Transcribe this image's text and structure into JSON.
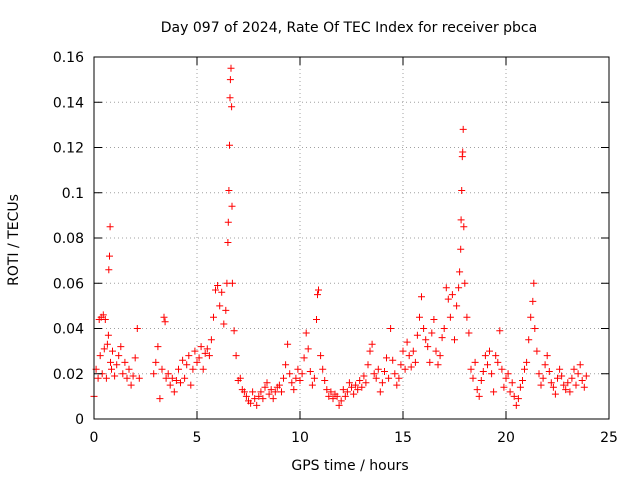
{
  "chart_data": {
    "type": "scatter",
    "title": "Day 097 of 2024, Rate Of TEC Index for receiver pbca",
    "xlabel": "GPS time / hours",
    "ylabel": "ROTI / TECUs",
    "xlim": [
      0,
      25
    ],
    "ylim": [
      0,
      0.16
    ],
    "xticks": [
      0,
      5,
      10,
      15,
      20,
      25
    ],
    "xtick_labels": [
      "0",
      "5",
      "10",
      "15",
      "20",
      "25"
    ],
    "yticks": [
      0,
      0.02,
      0.04,
      0.06,
      0.08,
      0.1,
      0.12,
      0.14,
      0.16
    ],
    "ytick_labels": [
      "0",
      "0.02",
      "0.04",
      "0.06",
      "0.08",
      "0.1",
      "0.12",
      "0.14",
      "0.16"
    ],
    "grid": true,
    "marker": "+",
    "color": "#ff0000",
    "series": [
      {
        "name": "ROTI",
        "points": [
          [
            0.0,
            0.01
          ],
          [
            0.1,
            0.022
          ],
          [
            0.2,
            0.018
          ],
          [
            0.25,
            0.044
          ],
          [
            0.3,
            0.028
          ],
          [
            0.35,
            0.045
          ],
          [
            0.4,
            0.02
          ],
          [
            0.45,
            0.046
          ],
          [
            0.5,
            0.031
          ],
          [
            0.55,
            0.044
          ],
          [
            0.6,
            0.018
          ],
          [
            0.65,
            0.033
          ],
          [
            0.7,
            0.037
          ],
          [
            0.72,
            0.066
          ],
          [
            0.75,
            0.072
          ],
          [
            0.78,
            0.085
          ],
          [
            0.8,
            0.025
          ],
          [
            0.85,
            0.022
          ],
          [
            0.9,
            0.03
          ],
          [
            1.0,
            0.019
          ],
          [
            1.1,
            0.024
          ],
          [
            1.2,
            0.028
          ],
          [
            1.3,
            0.032
          ],
          [
            1.4,
            0.02
          ],
          [
            1.5,
            0.025
          ],
          [
            1.6,
            0.018
          ],
          [
            1.7,
            0.022
          ],
          [
            1.8,
            0.015
          ],
          [
            1.9,
            0.019
          ],
          [
            2.0,
            0.027
          ],
          [
            2.1,
            0.04
          ],
          [
            2.2,
            0.018
          ],
          [
            2.9,
            0.02
          ],
          [
            3.0,
            0.025
          ],
          [
            3.1,
            0.032
          ],
          [
            3.2,
            0.009
          ],
          [
            3.3,
            0.022
          ],
          [
            3.4,
            0.045
          ],
          [
            3.45,
            0.043
          ],
          [
            3.5,
            0.018
          ],
          [
            3.6,
            0.02
          ],
          [
            3.7,
            0.015
          ],
          [
            3.8,
            0.018
          ],
          [
            3.9,
            0.012
          ],
          [
            4.0,
            0.017
          ],
          [
            4.1,
            0.022
          ],
          [
            4.2,
            0.016
          ],
          [
            4.3,
            0.026
          ],
          [
            4.4,
            0.018
          ],
          [
            4.5,
            0.024
          ],
          [
            4.6,
            0.028
          ],
          [
            4.7,
            0.015
          ],
          [
            4.8,
            0.022
          ],
          [
            4.9,
            0.03
          ],
          [
            5.0,
            0.025
          ],
          [
            5.1,
            0.027
          ],
          [
            5.2,
            0.032
          ],
          [
            5.3,
            0.022
          ],
          [
            5.4,
            0.029
          ],
          [
            5.5,
            0.031
          ],
          [
            5.6,
            0.028
          ],
          [
            5.7,
            0.035
          ],
          [
            5.8,
            0.045
          ],
          [
            5.9,
            0.057
          ],
          [
            6.0,
            0.059
          ],
          [
            6.1,
            0.05
          ],
          [
            6.2,
            0.056
          ],
          [
            6.3,
            0.042
          ],
          [
            6.4,
            0.048
          ],
          [
            6.45,
            0.06
          ],
          [
            6.5,
            0.078
          ],
          [
            6.52,
            0.087
          ],
          [
            6.55,
            0.101
          ],
          [
            6.58,
            0.121
          ],
          [
            6.6,
            0.142
          ],
          [
            6.62,
            0.15
          ],
          [
            6.65,
            0.155
          ],
          [
            6.68,
            0.138
          ],
          [
            6.7,
            0.094
          ],
          [
            6.72,
            0.06
          ],
          [
            6.8,
            0.039
          ],
          [
            6.9,
            0.028
          ],
          [
            7.0,
            0.017
          ],
          [
            7.1,
            0.018
          ],
          [
            7.2,
            0.013
          ],
          [
            7.3,
            0.012
          ],
          [
            7.4,
            0.01
          ],
          [
            7.5,
            0.008
          ],
          [
            7.6,
            0.007
          ],
          [
            7.7,
            0.012
          ],
          [
            7.8,
            0.009
          ],
          [
            7.9,
            0.006
          ],
          [
            8.0,
            0.01
          ],
          [
            8.1,
            0.012
          ],
          [
            8.2,
            0.009
          ],
          [
            8.3,
            0.014
          ],
          [
            8.4,
            0.016
          ],
          [
            8.5,
            0.011
          ],
          [
            8.6,
            0.013
          ],
          [
            8.7,
            0.009
          ],
          [
            8.8,
            0.012
          ],
          [
            8.9,
            0.014
          ],
          [
            9.0,
            0.015
          ],
          [
            9.1,
            0.012
          ],
          [
            9.2,
            0.018
          ],
          [
            9.3,
            0.024
          ],
          [
            9.4,
            0.033
          ],
          [
            9.5,
            0.02
          ],
          [
            9.6,
            0.016
          ],
          [
            9.7,
            0.013
          ],
          [
            9.8,
            0.018
          ],
          [
            9.9,
            0.022
          ],
          [
            10.0,
            0.017
          ],
          [
            10.1,
            0.02
          ],
          [
            10.2,
            0.027
          ],
          [
            10.3,
            0.038
          ],
          [
            10.4,
            0.031
          ],
          [
            10.5,
            0.021
          ],
          [
            10.6,
            0.015
          ],
          [
            10.7,
            0.018
          ],
          [
            10.8,
            0.044
          ],
          [
            10.85,
            0.055
          ],
          [
            10.9,
            0.057
          ],
          [
            11.0,
            0.028
          ],
          [
            11.1,
            0.022
          ],
          [
            11.2,
            0.017
          ],
          [
            11.3,
            0.013
          ],
          [
            11.4,
            0.01
          ],
          [
            11.5,
            0.012
          ],
          [
            11.6,
            0.009
          ],
          [
            11.7,
            0.011
          ],
          [
            11.8,
            0.01
          ],
          [
            11.9,
            0.006
          ],
          [
            12.0,
            0.008
          ],
          [
            12.1,
            0.013
          ],
          [
            12.2,
            0.01
          ],
          [
            12.3,
            0.012
          ],
          [
            12.4,
            0.016
          ],
          [
            12.5,
            0.014
          ],
          [
            12.6,
            0.011
          ],
          [
            12.7,
            0.015
          ],
          [
            12.8,
            0.013
          ],
          [
            12.9,
            0.017
          ],
          [
            13.0,
            0.014
          ],
          [
            13.1,
            0.019
          ],
          [
            13.2,
            0.016
          ],
          [
            13.3,
            0.024
          ],
          [
            13.4,
            0.03
          ],
          [
            13.5,
            0.033
          ],
          [
            13.6,
            0.02
          ],
          [
            13.7,
            0.018
          ],
          [
            13.8,
            0.022
          ],
          [
            13.9,
            0.012
          ],
          [
            14.0,
            0.016
          ],
          [
            14.1,
            0.021
          ],
          [
            14.2,
            0.027
          ],
          [
            14.3,
            0.018
          ],
          [
            14.4,
            0.04
          ],
          [
            14.5,
            0.026
          ],
          [
            14.6,
            0.02
          ],
          [
            14.7,
            0.015
          ],
          [
            14.8,
            0.018
          ],
          [
            14.9,
            0.024
          ],
          [
            15.0,
            0.03
          ],
          [
            15.1,
            0.022
          ],
          [
            15.2,
            0.034
          ],
          [
            15.3,
            0.028
          ],
          [
            15.4,
            0.023
          ],
          [
            15.5,
            0.03
          ],
          [
            15.6,
            0.025
          ],
          [
            15.7,
            0.037
          ],
          [
            15.8,
            0.045
          ],
          [
            15.9,
            0.054
          ],
          [
            16.0,
            0.04
          ],
          [
            16.1,
            0.035
          ],
          [
            16.2,
            0.032
          ],
          [
            16.3,
            0.025
          ],
          [
            16.4,
            0.038
          ],
          [
            16.5,
            0.044
          ],
          [
            16.6,
            0.03
          ],
          [
            16.7,
            0.024
          ],
          [
            16.8,
            0.028
          ],
          [
            16.9,
            0.036
          ],
          [
            17.0,
            0.04
          ],
          [
            17.1,
            0.058
          ],
          [
            17.2,
            0.053
          ],
          [
            17.3,
            0.045
          ],
          [
            17.4,
            0.055
          ],
          [
            17.5,
            0.035
          ],
          [
            17.6,
            0.05
          ],
          [
            17.7,
            0.058
          ],
          [
            17.75,
            0.065
          ],
          [
            17.8,
            0.075
          ],
          [
            17.82,
            0.088
          ],
          [
            17.85,
            0.101
          ],
          [
            17.88,
            0.116
          ],
          [
            17.9,
            0.118
          ],
          [
            17.92,
            0.128
          ],
          [
            17.95,
            0.085
          ],
          [
            18.0,
            0.06
          ],
          [
            18.1,
            0.045
          ],
          [
            18.2,
            0.038
          ],
          [
            18.3,
            0.022
          ],
          [
            18.4,
            0.018
          ],
          [
            18.5,
            0.025
          ],
          [
            18.6,
            0.013
          ],
          [
            18.7,
            0.01
          ],
          [
            18.8,
            0.017
          ],
          [
            18.9,
            0.021
          ],
          [
            19.0,
            0.028
          ],
          [
            19.1,
            0.024
          ],
          [
            19.2,
            0.03
          ],
          [
            19.3,
            0.02
          ],
          [
            19.4,
            0.012
          ],
          [
            19.5,
            0.028
          ],
          [
            19.6,
            0.025
          ],
          [
            19.7,
            0.039
          ],
          [
            19.8,
            0.022
          ],
          [
            19.9,
            0.014
          ],
          [
            20.0,
            0.018
          ],
          [
            20.1,
            0.02
          ],
          [
            20.2,
            0.012
          ],
          [
            20.3,
            0.016
          ],
          [
            20.4,
            0.01
          ],
          [
            20.5,
            0.006
          ],
          [
            20.6,
            0.009
          ],
          [
            20.7,
            0.014
          ],
          [
            20.8,
            0.017
          ],
          [
            20.9,
            0.022
          ],
          [
            21.0,
            0.025
          ],
          [
            21.1,
            0.035
          ],
          [
            21.2,
            0.045
          ],
          [
            21.3,
            0.052
          ],
          [
            21.35,
            0.06
          ],
          [
            21.4,
            0.04
          ],
          [
            21.5,
            0.03
          ],
          [
            21.6,
            0.02
          ],
          [
            21.7,
            0.015
          ],
          [
            21.8,
            0.018
          ],
          [
            21.9,
            0.024
          ],
          [
            22.0,
            0.028
          ],
          [
            22.1,
            0.021
          ],
          [
            22.2,
            0.016
          ],
          [
            22.3,
            0.014
          ],
          [
            22.4,
            0.011
          ],
          [
            22.5,
            0.018
          ],
          [
            22.6,
            0.022
          ],
          [
            22.7,
            0.019
          ],
          [
            22.8,
            0.015
          ],
          [
            22.9,
            0.013
          ],
          [
            23.0,
            0.016
          ],
          [
            23.1,
            0.012
          ],
          [
            23.2,
            0.018
          ],
          [
            23.3,
            0.022
          ],
          [
            23.4,
            0.015
          ],
          [
            23.5,
            0.02
          ],
          [
            23.6,
            0.024
          ],
          [
            23.7,
            0.017
          ],
          [
            23.8,
            0.014
          ],
          [
            23.9,
            0.019
          ]
        ]
      }
    ]
  }
}
